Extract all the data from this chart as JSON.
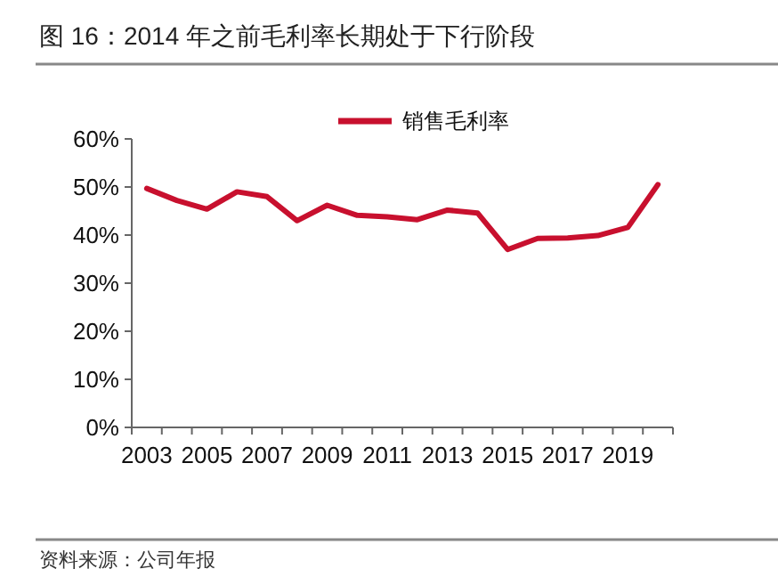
{
  "chart_data": {
    "type": "line",
    "title": "图 16：2014 年之前毛利率长期处于下行阶段",
    "categories": [
      "2003",
      null,
      "2005",
      null,
      "2007",
      null,
      "2009",
      null,
      "2011",
      null,
      "2013",
      null,
      "2015",
      null,
      "2017",
      null,
      "2019",
      null
    ],
    "series": [
      {
        "name": "销售毛利率",
        "color": "#c8102e",
        "values": [
          49.7,
          47.2,
          45.4,
          49.0,
          48.0,
          43.0,
          46.2,
          44.1,
          43.8,
          43.2,
          45.2,
          44.6,
          37.0,
          39.3,
          39.4,
          39.9,
          41.6,
          50.5
        ]
      }
    ],
    "ylim": [
      0,
      60
    ],
    "yticks": [
      {
        "value": 0,
        "label": "0%"
      },
      {
        "value": 10,
        "label": "10%"
      },
      {
        "value": 20,
        "label": "20%"
      },
      {
        "value": 30,
        "label": "30%"
      },
      {
        "value": 40,
        "label": "40%"
      },
      {
        "value": 50,
        "label": "50%"
      },
      {
        "value": 60,
        "label": "60%"
      }
    ],
    "legend": "top",
    "grid": false,
    "annotations": [
      "资料来源：公司年报"
    ]
  }
}
